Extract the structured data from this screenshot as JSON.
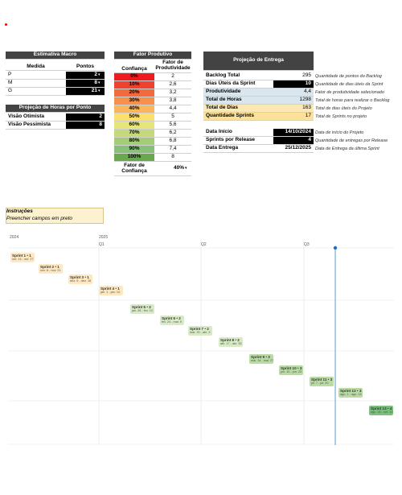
{
  "estimativa_macro": {
    "title": "Estimativa Macro",
    "headers": [
      "Medida",
      "Pontos"
    ],
    "rows": [
      [
        "P",
        "2"
      ],
      [
        "M",
        "8"
      ],
      [
        "G",
        "21"
      ]
    ]
  },
  "horas_por_ponto": {
    "title": "Projeção de Horas por Ponto",
    "rows": [
      [
        "Visão Otimista",
        "2"
      ],
      [
        "Visão Pessimista",
        "8"
      ]
    ]
  },
  "fator_produtivo": {
    "title": "Fator Produtivo",
    "headers": [
      "Confiança",
      "Fator de Produtividade"
    ],
    "rows": [
      [
        "0%",
        "2"
      ],
      [
        "10%",
        "2,6"
      ],
      [
        "20%",
        "3,2"
      ],
      [
        "30%",
        "3,8"
      ],
      [
        "40%",
        "4,4"
      ],
      [
        "50%",
        "5"
      ],
      [
        "60%",
        "5,6"
      ],
      [
        "70%",
        "6,2"
      ],
      [
        "80%",
        "6,8"
      ],
      [
        "90%",
        "7,4"
      ],
      [
        "100%",
        "8"
      ]
    ],
    "footer": [
      "Fator de Confiança",
      "40%"
    ]
  },
  "projecao_entrega": {
    "title": "Projeção de Entrega",
    "rows": [
      [
        "Backlog Total",
        "295",
        "Quantidade de pontos do Backlog"
      ],
      [
        "Dias Úteis da Sprint",
        "10",
        "Quantidade de dias úteis da Sprint"
      ],
      [
        "Produtividade",
        "4,4",
        "Fator de produtividade selecionado"
      ],
      [
        "Total de Horas",
        "1298",
        "Total de horas para realizar o Backlog"
      ],
      [
        "Total de Dias",
        "163",
        "Total de dias úteis do Projeto"
      ],
      [
        "Quantidade Sprints",
        "17",
        "Total de Sprints no projeto"
      ]
    ],
    "dates": [
      [
        "Data Início",
        "14/10/2024",
        "Data de início do Projeto"
      ],
      [
        "Sprints por Release",
        "4",
        "Quantidade de entregas por Release"
      ],
      [
        "Data Entrega",
        "25/12/2025",
        "Data de Entrega da última Sprint"
      ]
    ]
  },
  "instrucoes": {
    "title": "Instruções",
    "text": "Preencher campos em preto"
  },
  "timeline": {
    "years": [
      "2024",
      "2025"
    ],
    "quarters": [
      "Q1",
      "Q2",
      "Q3"
    ],
    "sprints": [
      {
        "name": "Sprint 1 • 1",
        "dates": "out. 14 - out. 27"
      },
      {
        "name": "Sprint 2 • 1",
        "dates": "nov. 8 - nov. 21"
      },
      {
        "name": "Sprint 3 • 1",
        "dates": "dez. 5 - dez. 18"
      },
      {
        "name": "Sprint 4 • 1",
        "dates": "jan. 1 - jan. 14"
      },
      {
        "name": "Sprint 5 • 2",
        "dates": "jan. 28 - fev. 10"
      },
      {
        "name": "Sprint 6 • 2",
        "dates": "fev. 24 - mar. 9"
      },
      {
        "name": "Sprint 7 • 2",
        "dates": "mar. 20 - abr. 3"
      },
      {
        "name": "Sprint 8 • 2",
        "dates": "abr. 17 - abr. 30"
      },
      {
        "name": "Sprint 9 • 3",
        "dates": "mai. 14 - mai. 27"
      },
      {
        "name": "Sprint 10 • 3",
        "dates": "jun. 10 - jun. 23"
      },
      {
        "name": "Sprint 11 • 3",
        "dates": "jul. 7 - jul. 20"
      },
      {
        "name": "Sprint 12 • 3",
        "dates": "ago. 1 - ago. 14"
      },
      {
        "name": "Sprint 13 • 4",
        "dates": "ago. 28 - set. 10"
      }
    ]
  }
}
